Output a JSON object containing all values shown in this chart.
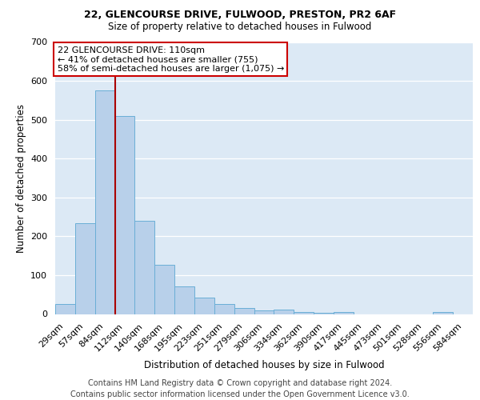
{
  "title1": "22, GLENCOURSE DRIVE, FULWOOD, PRESTON, PR2 6AF",
  "title2": "Size of property relative to detached houses in Fulwood",
  "xlabel": "Distribution of detached houses by size in Fulwood",
  "ylabel": "Number of detached properties",
  "categories": [
    "29sqm",
    "57sqm",
    "84sqm",
    "112sqm",
    "140sqm",
    "168sqm",
    "195sqm",
    "223sqm",
    "251sqm",
    "279sqm",
    "306sqm",
    "334sqm",
    "362sqm",
    "390sqm",
    "417sqm",
    "445sqm",
    "473sqm",
    "501sqm",
    "528sqm",
    "556sqm",
    "584sqm"
  ],
  "values": [
    25,
    233,
    575,
    510,
    240,
    127,
    72,
    42,
    25,
    16,
    10,
    11,
    5,
    4,
    5,
    0,
    0,
    0,
    0,
    6,
    0
  ],
  "bar_color": "#b8d0ea",
  "bar_edge_color": "#6aaed6",
  "bar_width": 1.0,
  "vline_x": 2.5,
  "vline_color": "#aa0000",
  "annotation_text": "22 GLENCOURSE DRIVE: 110sqm\n← 41% of detached houses are smaller (755)\n58% of semi-detached houses are larger (1,075) →",
  "annotation_box_color": "white",
  "annotation_box_edge_color": "#cc0000",
  "ylim": [
    0,
    700
  ],
  "yticks": [
    0,
    100,
    200,
    300,
    400,
    500,
    600,
    700
  ],
  "background_color": "#dce9f5",
  "grid_color": "white",
  "title1_fontsize": 9,
  "title2_fontsize": 8.5,
  "xlabel_fontsize": 8.5,
  "ylabel_fontsize": 8.5,
  "tick_fontsize": 8,
  "ann_fontsize": 8,
  "footer": "Contains HM Land Registry data © Crown copyright and database right 2024.\nContains public sector information licensed under the Open Government Licence v3.0.",
  "footer_fontsize": 7
}
